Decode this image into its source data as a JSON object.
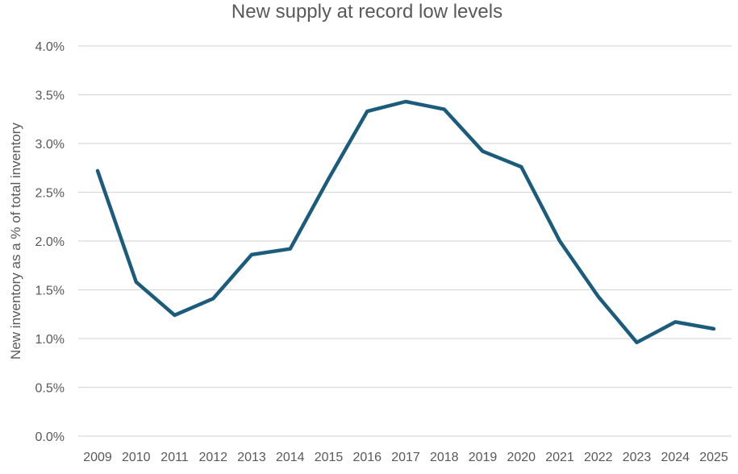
{
  "chart_data": {
    "type": "line",
    "title": "New supply at record low levels",
    "xlabel": "",
    "ylabel": "New inventory as a % of total inventory",
    "categories": [
      "2009",
      "2010",
      "2011",
      "2012",
      "2013",
      "2014",
      "2015",
      "2016",
      "2017",
      "2018",
      "2019",
      "2020",
      "2021",
      "2022",
      "2023",
      "2024",
      "2025"
    ],
    "series": [
      {
        "values": [
          2.72,
          1.58,
          1.24,
          1.41,
          1.86,
          1.92,
          2.64,
          3.33,
          3.43,
          3.35,
          2.92,
          2.76,
          2.0,
          1.43,
          0.96,
          1.17,
          1.1
        ]
      }
    ],
    "ylim": [
      0,
      4
    ],
    "yticks": [
      {
        "value": 0,
        "label": "0.0%"
      },
      {
        "value": 0.5,
        "label": "0.5%"
      },
      {
        "value": 1,
        "label": "1.0%"
      },
      {
        "value": 1.5,
        "label": "1.5%"
      },
      {
        "value": 2,
        "label": "2.0%"
      },
      {
        "value": 2.5,
        "label": "2.5%"
      },
      {
        "value": 3,
        "label": "3.0%"
      },
      {
        "value": 3.5,
        "label": "3.5%"
      },
      {
        "value": 4,
        "label": "4.0%"
      }
    ],
    "grid": true,
    "legend": "none",
    "line_color": "#1b5c7d",
    "grid_color": "#d9d9d9",
    "text_color": "#595959"
  }
}
